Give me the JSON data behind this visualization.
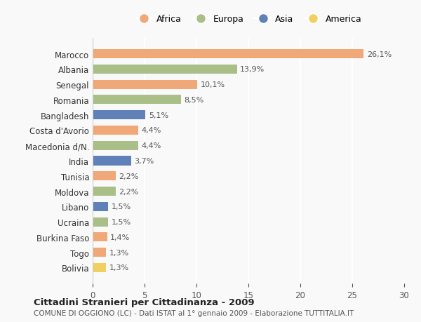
{
  "categories": [
    "Bolivia",
    "Togo",
    "Burkina Faso",
    "Ucraina",
    "Libano",
    "Moldova",
    "Tunisia",
    "India",
    "Macedonia d/N.",
    "Costa d'Avorio",
    "Bangladesh",
    "Romania",
    "Senegal",
    "Albania",
    "Marocco"
  ],
  "values": [
    1.3,
    1.3,
    1.4,
    1.5,
    1.5,
    2.2,
    2.2,
    3.7,
    4.4,
    4.4,
    5.1,
    8.5,
    10.1,
    13.9,
    26.1
  ],
  "labels": [
    "1,3%",
    "1,3%",
    "1,4%",
    "1,5%",
    "1,5%",
    "2,2%",
    "2,2%",
    "3,7%",
    "4,4%",
    "4,4%",
    "5,1%",
    "8,5%",
    "10,1%",
    "13,9%",
    "26,1%"
  ],
  "continents": [
    "America",
    "Africa",
    "Africa",
    "Europa",
    "Asia",
    "Europa",
    "Africa",
    "Asia",
    "Europa",
    "Africa",
    "Asia",
    "Europa",
    "Africa",
    "Europa",
    "Africa"
  ],
  "colors": {
    "Africa": "#F0A878",
    "Europa": "#AABF88",
    "Asia": "#6080B8",
    "America": "#F0D060"
  },
  "legend_order": [
    "Africa",
    "Europa",
    "Asia",
    "America"
  ],
  "xlim": [
    0,
    30
  ],
  "xticks": [
    0,
    5,
    10,
    15,
    20,
    25,
    30
  ],
  "title": "Cittadini Stranieri per Cittadinanza - 2009",
  "subtitle": "COMUNE DI OGGIONO (LC) - Dati ISTAT al 1° gennaio 2009 - Elaborazione TUTTITALIA.IT",
  "background_color": "#f9f9f9",
  "grid_color": "#ffffff",
  "bar_height": 0.6
}
